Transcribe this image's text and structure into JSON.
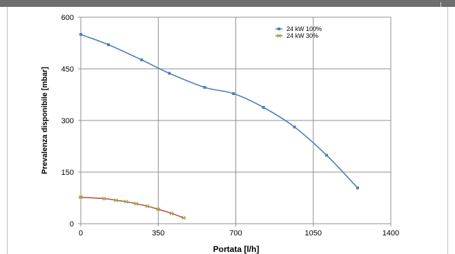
{
  "chart_data": {
    "type": "line",
    "title": "",
    "xlabel": "Portata [l/h]",
    "ylabel": "Prevalenza disponibile [mbar]",
    "xlim": [
      0,
      1400
    ],
    "ylim": [
      0,
      600
    ],
    "xticks": [
      "0",
      "350",
      "700",
      "1050",
      "1400"
    ],
    "yticks": [
      "0",
      "150",
      "300",
      "450",
      "600"
    ],
    "grid": true,
    "legend_position": "top-right",
    "series": [
      {
        "name": "24 kW 100%",
        "color": "#4a7ebb",
        "marker": "square",
        "x": [
          0,
          125,
          275,
          400,
          560,
          690,
          825,
          965,
          1110,
          1250
        ],
        "y": [
          550,
          520,
          476,
          437,
          396,
          378,
          338,
          281,
          199,
          104
        ]
      },
      {
        "name": "24 kW 30%",
        "color": "#be4b48",
        "marker": "star",
        "x": [
          0,
          105,
          160,
          205,
          250,
          300,
          350,
          410,
          465
        ],
        "y": [
          77,
          73,
          68,
          64,
          58,
          51,
          42,
          30,
          17
        ]
      }
    ]
  }
}
